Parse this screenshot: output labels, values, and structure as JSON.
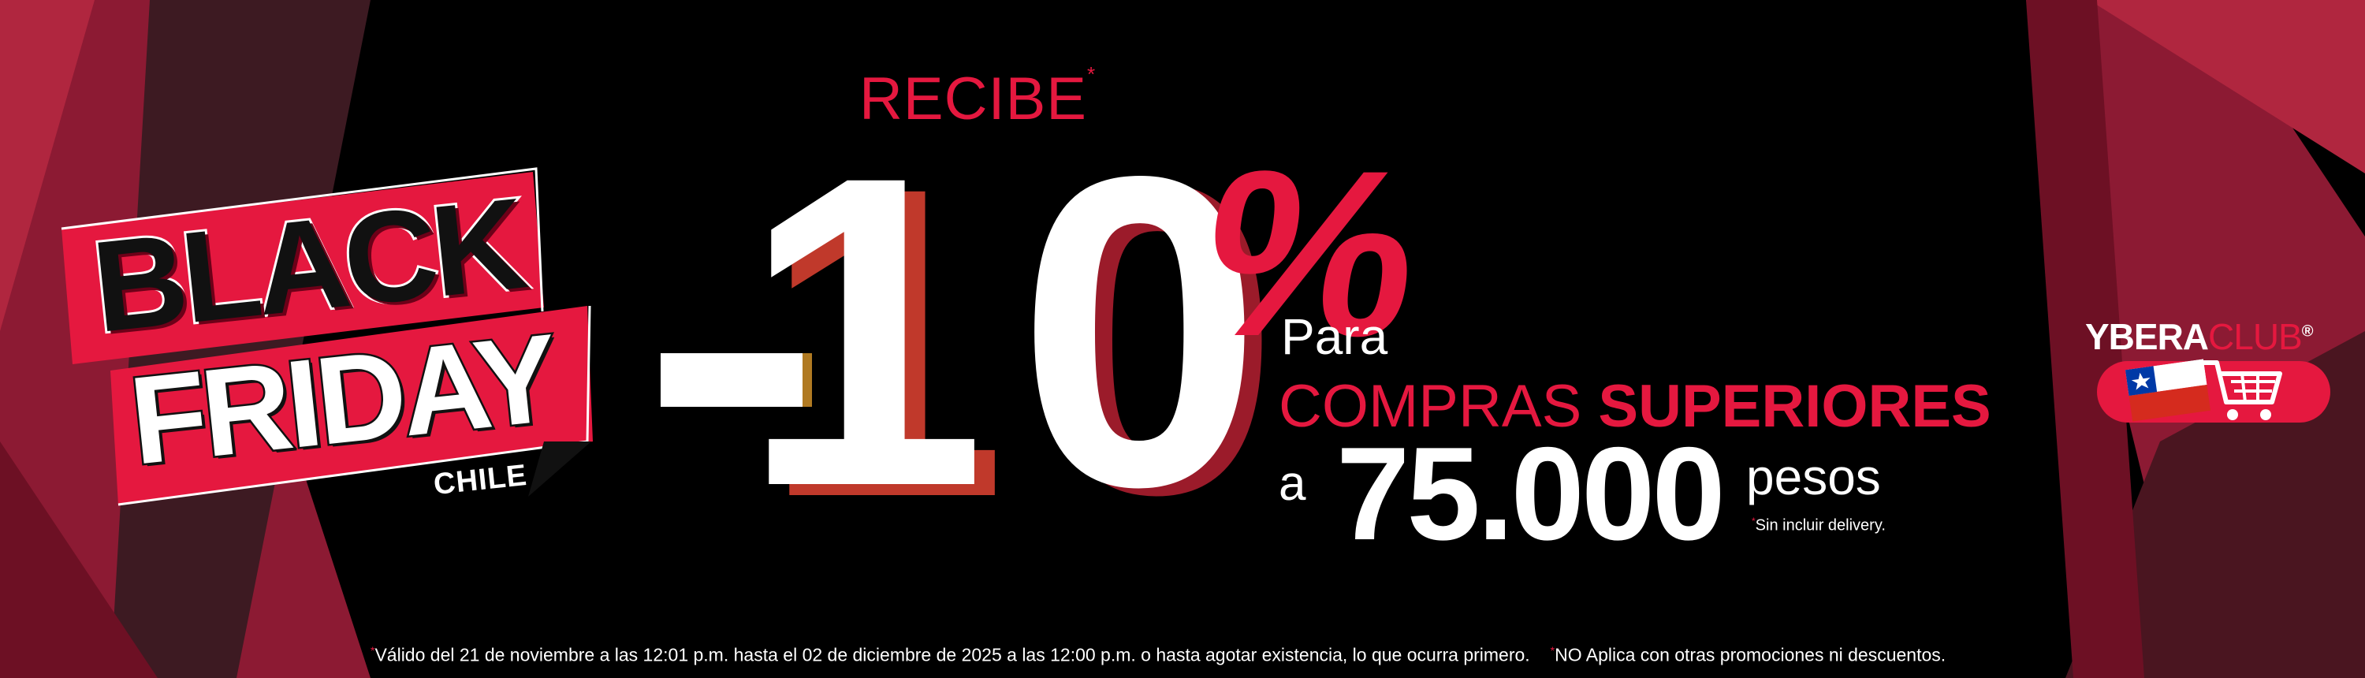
{
  "badge": {
    "line1": "BLACK",
    "line2": "FRIDAY",
    "country": "CHILE"
  },
  "offer": {
    "eyebrow": "RECIBE",
    "eyebrow_mark": "*",
    "sign": "-",
    "digit1": "1",
    "digit2": "0",
    "percent": "%",
    "para": "Para",
    "compras": "COMPRAS",
    "superiores": "SUPERIORES",
    "a": "a",
    "amount": "75.000",
    "currency": "pesos",
    "note_mark": "*",
    "note": "Sin incluir delivery."
  },
  "brand": {
    "name": "YBERA",
    "club": "CLUB",
    "mark": "®"
  },
  "footer": {
    "mark1": "*",
    "text1": "Válido del 21 de noviembre a las 12:01 p.m. hasta el 02 de diciembre de 2025 a las 12:00 p.m. o hasta agotar existencia, lo que ocurra primero.",
    "mark2": "*",
    "text2": "NO Aplica con otras promociones ni descuentos."
  },
  "colors": {
    "accent": "#e5183f",
    "background": "#000000",
    "panel": "#8c1a33"
  },
  "icons": [
    "chile-flag-icon",
    "shopping-cart-icon"
  ]
}
